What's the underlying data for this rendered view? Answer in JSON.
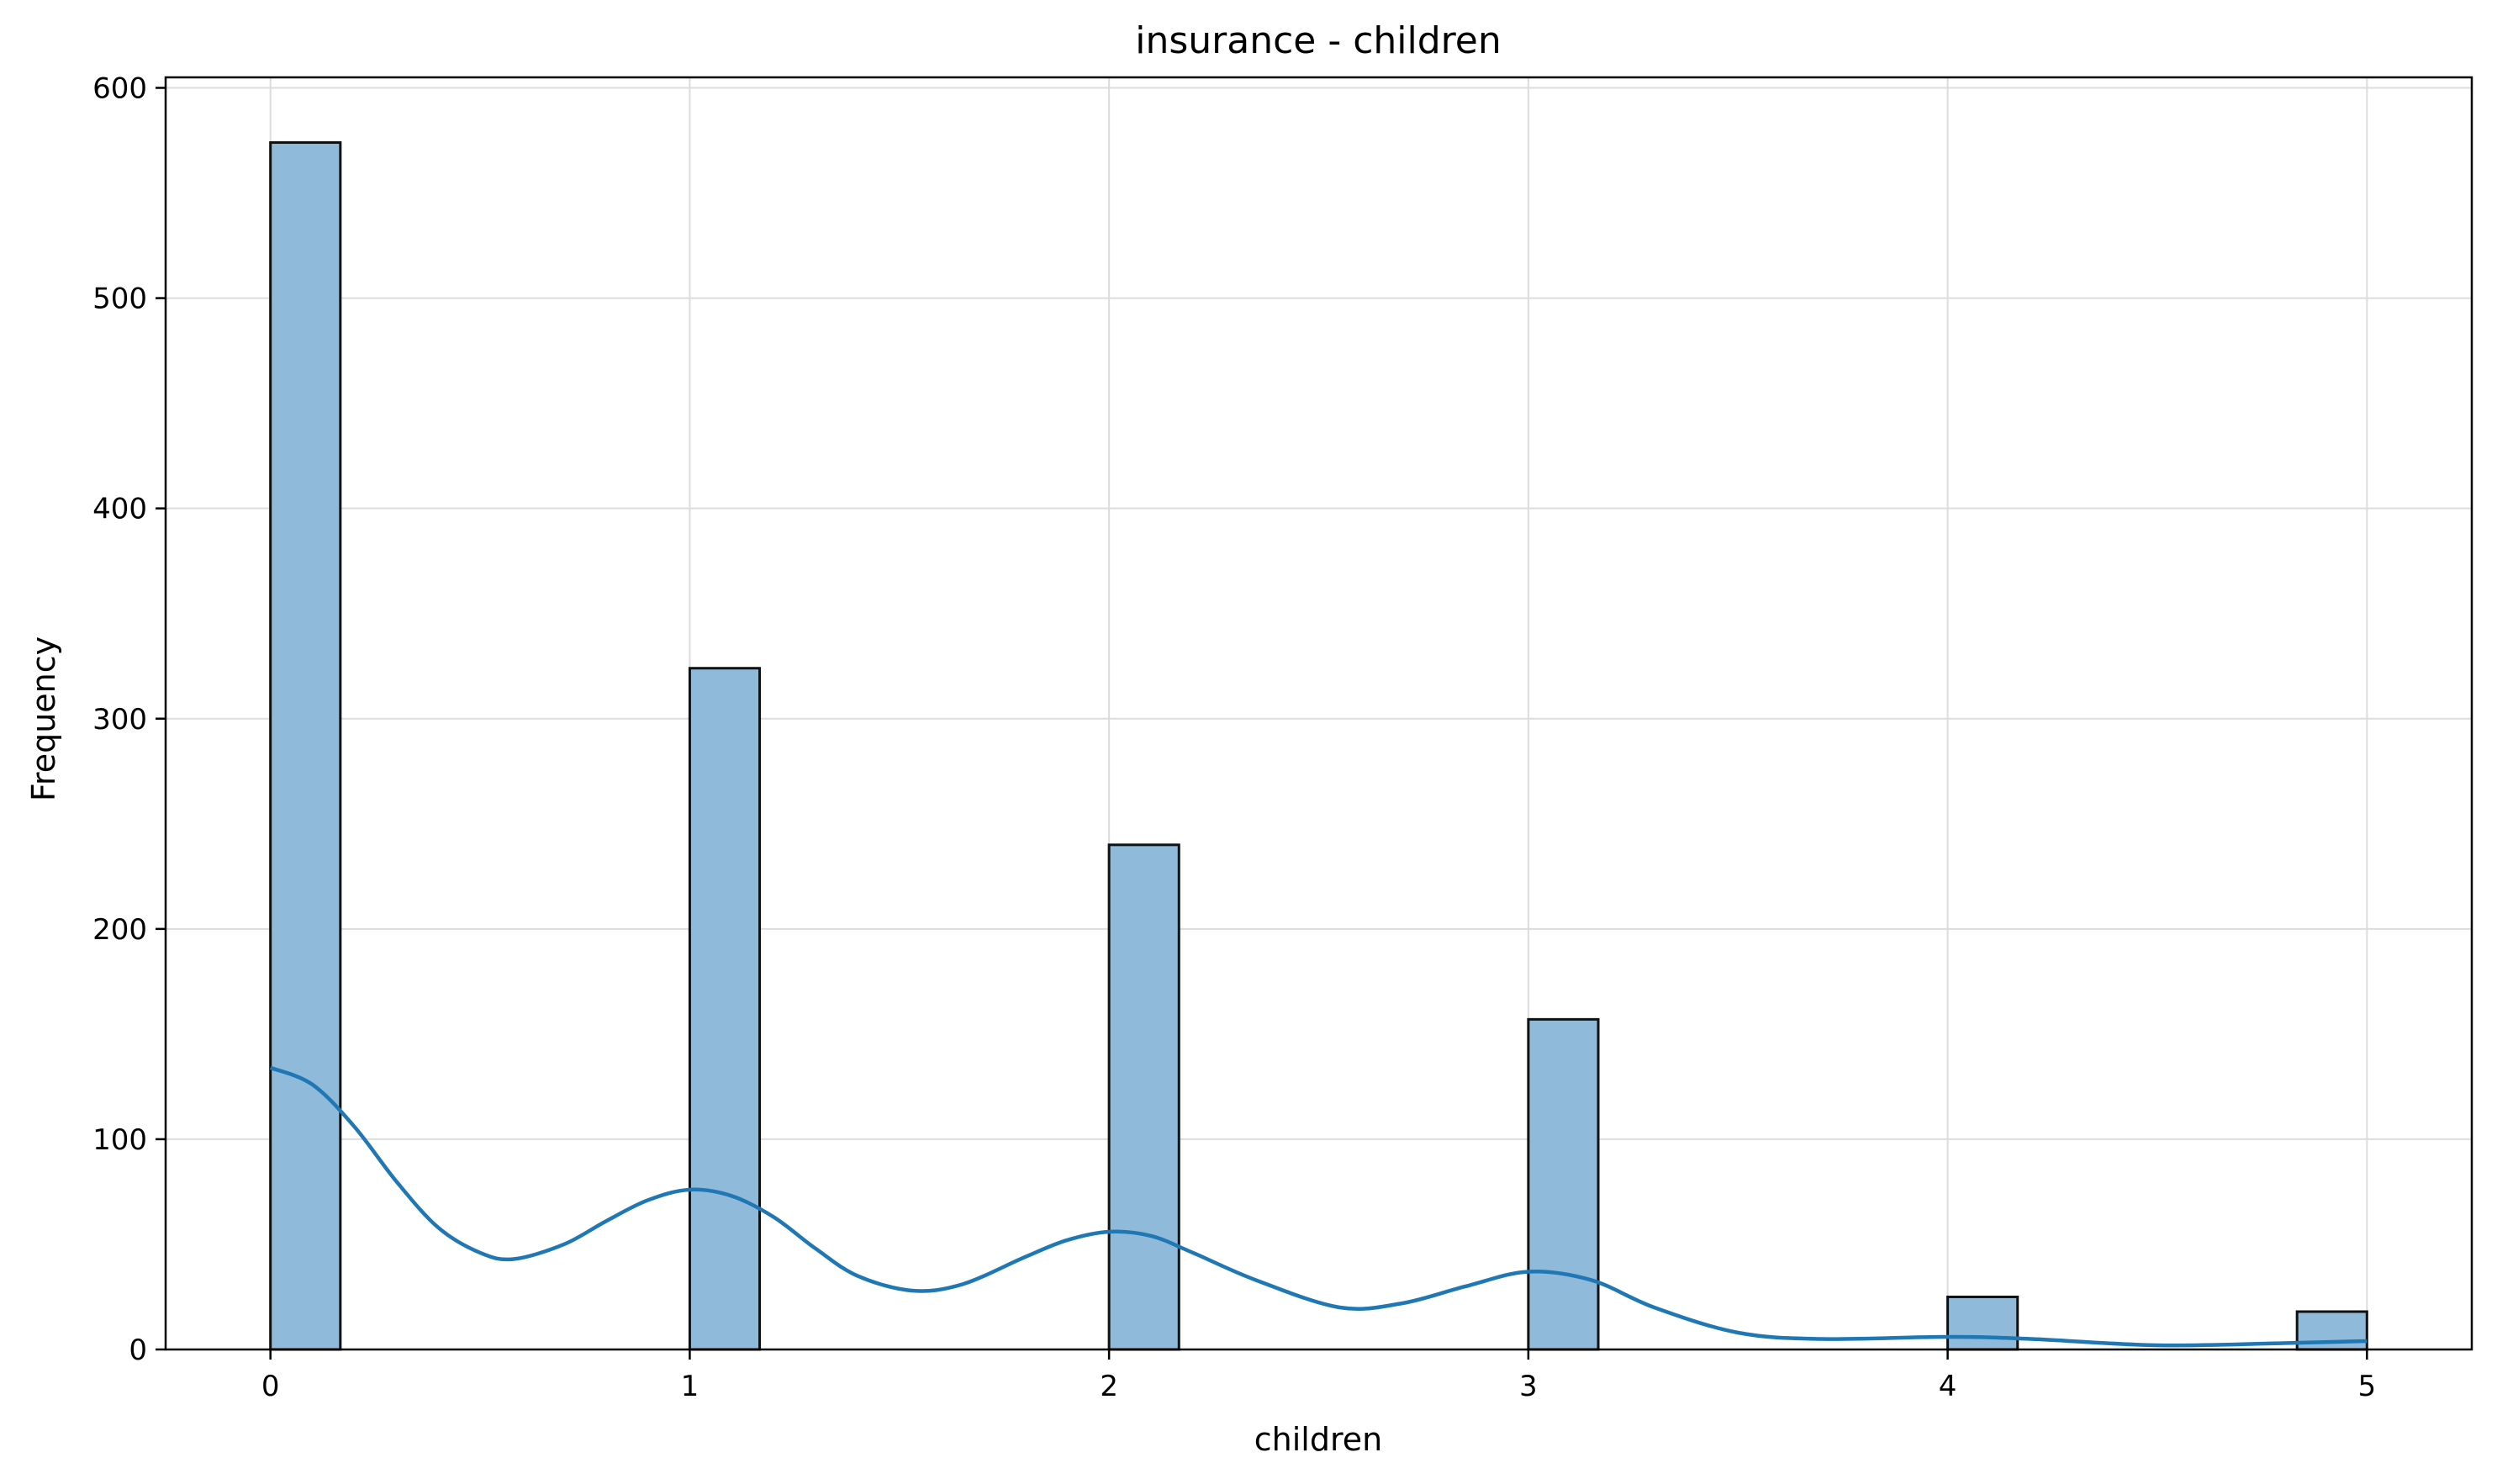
{
  "chart_data": {
    "type": "bar",
    "title": "insurance - children",
    "xlabel": "children",
    "ylabel": "Frequency",
    "xlim": [
      -0.25,
      5.25
    ],
    "ylim": [
      0,
      605
    ],
    "xticks": [
      0,
      1,
      2,
      3,
      4,
      5
    ],
    "yticks": [
      0,
      100,
      200,
      300,
      400,
      500,
      600
    ],
    "grid": true,
    "bin_width": 0.1667,
    "bars": [
      {
        "x_start": 0,
        "value": 574
      },
      {
        "x_start": 1,
        "value": 324
      },
      {
        "x_start": 2,
        "value": 240
      },
      {
        "x_start": 3,
        "value": 157
      },
      {
        "x_start": 4,
        "value": 25
      },
      {
        "x_start": 4.8333,
        "value": 18
      }
    ],
    "kde": {
      "x": [
        0,
        0.1,
        0.2,
        0.3,
        0.4,
        0.5,
        0.58,
        0.7,
        0.8,
        0.9,
        1.0,
        1.1,
        1.2,
        1.3,
        1.4,
        1.53,
        1.65,
        1.8,
        1.9,
        2.0,
        2.1,
        2.2,
        2.35,
        2.55,
        2.7,
        2.85,
        3.0,
        3.15,
        3.3,
        3.5,
        3.7,
        4.0,
        4.2,
        4.5,
        4.8,
        5.0
      ],
      "y": [
        134,
        126,
        106,
        80,
        58,
        46,
        43,
        50,
        61,
        71,
        76,
        73,
        63,
        48,
        35,
        28,
        31,
        44,
        52,
        56,
        54,
        46,
        33,
        20,
        22,
        30,
        37,
        33,
        20,
        8,
        5,
        6,
        5,
        2,
        3,
        4
      ]
    },
    "colors": {
      "bar_fill": "#8fbad9",
      "bar_edge": "#111111",
      "kde_line": "#1f77b4",
      "grid": "#dcdcdc"
    }
  }
}
